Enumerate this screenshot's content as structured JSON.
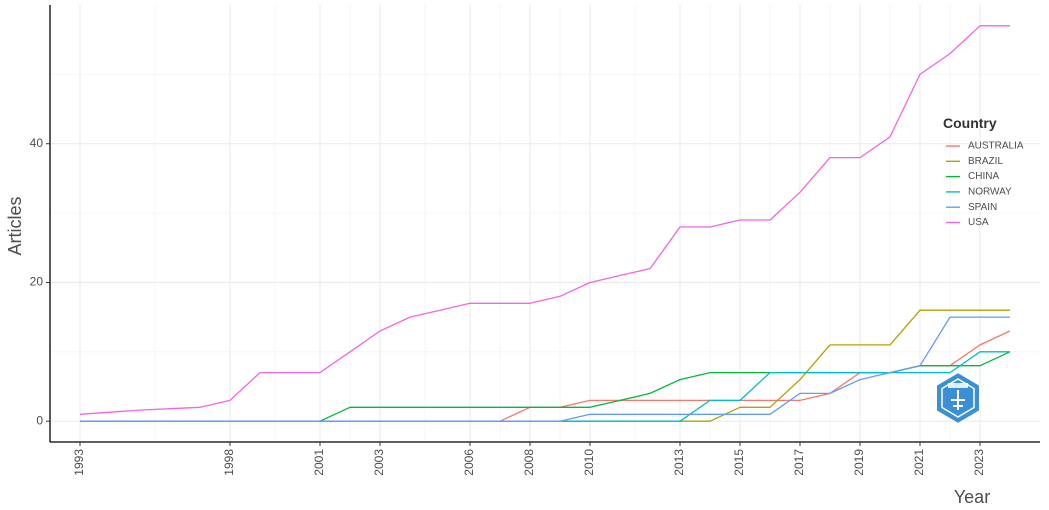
{
  "chart_data": {
    "type": "line",
    "title": "",
    "xlabel": "Year",
    "ylabel": "Articles",
    "xlim": [
      1992,
      2025
    ],
    "ylim": [
      -3,
      60
    ],
    "x_ticks": [
      "1993",
      "1998",
      "2001",
      "2003",
      "2006",
      "2008",
      "2010",
      "2013",
      "2015",
      "2017",
      "2019",
      "2021",
      "2023"
    ],
    "y_ticks": [
      "0",
      "20",
      "40"
    ],
    "grid": true,
    "legend": {
      "title": "Country",
      "placement": "right"
    },
    "x": [
      1993,
      1994,
      1995,
      1996,
      1997,
      1998,
      1999,
      2000,
      2001,
      2002,
      2003,
      2004,
      2005,
      2006,
      2007,
      2008,
      2009,
      2010,
      2011,
      2012,
      2013,
      2014,
      2015,
      2016,
      2017,
      2018,
      2019,
      2020,
      2021,
      2022,
      2023,
      2024
    ],
    "series": [
      {
        "name": "AUSTRALIA",
        "color": "#F8766D",
        "values": [
          0,
          0,
          0,
          0,
          0,
          0,
          0,
          0,
          0,
          0,
          0,
          0,
          0,
          0,
          0,
          2,
          2,
          3,
          3,
          3,
          3,
          3,
          3,
          3,
          3,
          4,
          7,
          7,
          8,
          8,
          11,
          13
        ]
      },
      {
        "name": "BRAZIL",
        "color": "#B79F00",
        "values": [
          0,
          0,
          0,
          0,
          0,
          0,
          0,
          0,
          0,
          0,
          0,
          0,
          0,
          0,
          0,
          0,
          0,
          0,
          0,
          0,
          0,
          0,
          2,
          2,
          6,
          11,
          11,
          11,
          16,
          16,
          16,
          16
        ]
      },
      {
        "name": "CHINA",
        "color": "#00BA38",
        "values": [
          0,
          0,
          0,
          0,
          0,
          0,
          0,
          0,
          0,
          2,
          2,
          2,
          2,
          2,
          2,
          2,
          2,
          2,
          3,
          4,
          6,
          7,
          7,
          7,
          7,
          7,
          7,
          7,
          8,
          8,
          8,
          10
        ]
      },
      {
        "name": "NORWAY",
        "color": "#00BFC4",
        "values": [
          0,
          0,
          0,
          0,
          0,
          0,
          0,
          0,
          0,
          0,
          0,
          0,
          0,
          0,
          0,
          0,
          0,
          0,
          0,
          0,
          0,
          3,
          3,
          7,
          7,
          7,
          7,
          7,
          7,
          7,
          10,
          10
        ]
      },
      {
        "name": "SPAIN",
        "color": "#619CFF",
        "values": [
          0,
          0,
          0,
          0,
          0,
          0,
          0,
          0,
          0,
          0,
          0,
          0,
          0,
          0,
          0,
          0,
          0,
          1,
          1,
          1,
          1,
          1,
          1,
          1,
          4,
          4,
          6,
          7,
          8,
          15,
          15,
          15
        ]
      },
      {
        "name": "USA",
        "color": "#F564E3",
        "values": [
          1,
          1.3,
          1.6,
          1.8,
          2,
          3,
          7,
          7,
          7,
          10,
          13,
          15,
          16,
          17,
          17,
          17,
          18,
          20,
          21,
          22,
          28,
          28,
          29,
          29,
          33,
          38,
          38,
          41,
          50,
          53,
          57,
          57
        ]
      }
    ]
  }
}
